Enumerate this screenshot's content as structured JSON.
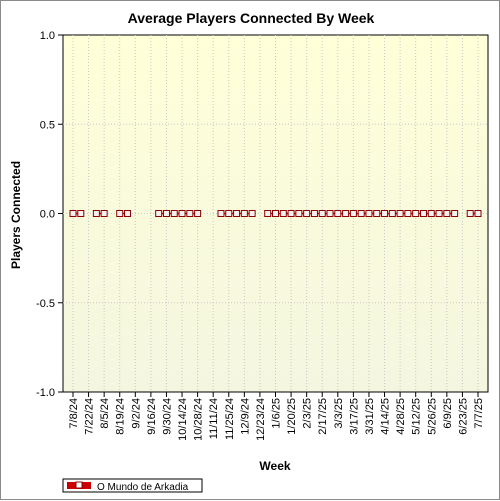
{
  "chart_data": {
    "type": "line",
    "title": "Average Players Connected By Week",
    "xlabel": "Week",
    "ylabel": "Players Connected",
    "ylim": [
      -1.0,
      1.0
    ],
    "y_ticks": [
      "1.0",
      "0.5",
      "0.0",
      "-0.5",
      "-1.0"
    ],
    "x": [
      "7/8/24",
      "7/15/24",
      "7/22/24",
      "7/29/24",
      "8/5/24",
      "8/12/24",
      "8/19/24",
      "8/26/24",
      "9/2/24",
      "9/9/24",
      "9/16/24",
      "9/23/24",
      "9/30/24",
      "10/7/24",
      "10/14/24",
      "10/21/24",
      "10/28/24",
      "11/4/24",
      "11/11/24",
      "11/18/24",
      "11/25/24",
      "12/2/24",
      "12/9/24",
      "12/16/24",
      "12/23/24",
      "12/30/24",
      "1/6/25",
      "1/13/25",
      "1/20/25",
      "1/27/25",
      "2/3/25",
      "2/10/25",
      "2/17/25",
      "2/24/25",
      "3/3/25",
      "3/10/25",
      "3/17/25",
      "3/24/25",
      "3/31/25",
      "4/7/25",
      "4/14/25",
      "4/21/25",
      "4/28/25",
      "5/5/25",
      "5/12/25",
      "5/19/25",
      "5/26/25",
      "6/2/25",
      "6/9/25",
      "6/16/25",
      "6/23/25",
      "6/30/25",
      "7/7/25"
    ],
    "x_tick_labels": [
      "7/8/24",
      "7/22/24",
      "8/5/24",
      "8/19/24",
      "9/2/24",
      "9/16/24",
      "9/30/24",
      "10/14/24",
      "10/28/24",
      "11/11/24",
      "11/25/24",
      "12/9/24",
      "12/23/24",
      "1/6/25",
      "1/20/25",
      "2/3/25",
      "2/17/25",
      "3/3/25",
      "3/17/25",
      "3/31/25",
      "4/14/25",
      "4/28/25",
      "5/12/25",
      "5/26/25",
      "6/9/25",
      "6/23/25",
      "7/7/25"
    ],
    "series": [
      {
        "name": "O Mundo de Arkadia",
        "color": "#cc0000",
        "values": [
          0,
          0,
          null,
          0,
          0,
          null,
          0,
          0,
          null,
          null,
          null,
          0,
          0,
          0,
          0,
          0,
          0,
          null,
          null,
          0,
          0,
          0,
          0,
          0,
          null,
          0,
          0,
          0,
          0,
          0,
          0,
          0,
          0,
          0,
          0,
          0,
          0,
          0,
          0,
          0,
          0,
          0,
          0,
          0,
          0,
          0,
          0,
          0,
          0,
          0,
          null,
          0,
          0
        ]
      }
    ],
    "legend_position": "bottom-left",
    "grid": true,
    "background_color": "#ffffe0"
  }
}
